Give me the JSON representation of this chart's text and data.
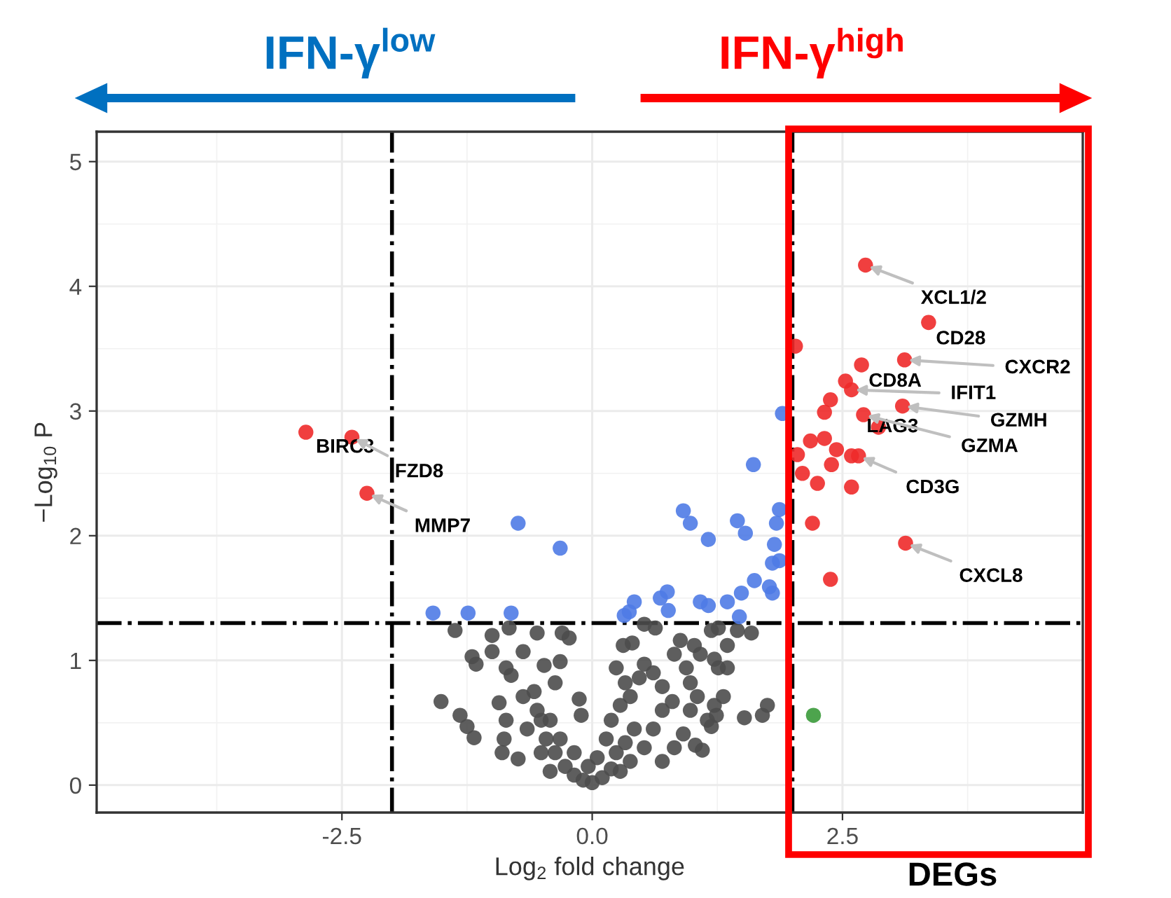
{
  "chart_data": {
    "type": "scatter",
    "xlabel": "Log$_{2}$ fold change",
    "ylabel": "−Log$_{10}$ P",
    "xlim": [
      -4.95,
      4.9
    ],
    "ylim": [
      -0.22,
      5.24
    ],
    "xticks": [
      {
        "value": -2.5,
        "label": "-2.5"
      },
      {
        "value": 0,
        "label": "0.0"
      },
      {
        "value": 2.5,
        "label": "2.5"
      }
    ],
    "yticks": [
      0,
      1,
      2,
      3,
      4,
      5
    ],
    "grid": true,
    "marker": "circle",
    "ref_lines": [
      {
        "axis": "x",
        "value": -2,
        "color": "#000000",
        "line_style": "dashdot"
      },
      {
        "axis": "x",
        "value": 2,
        "color": "#000000",
        "line_style": "dashdot"
      },
      {
        "axis": "y",
        "value": 1.3,
        "color": "#000000",
        "line_style": "dashdot"
      }
    ],
    "series": [
      {
        "color": "#4d4d4d",
        "x": [
          -1.37,
          -1.0,
          -0.83,
          -0.55,
          -0.3,
          -0.23,
          -1.2,
          -1.16,
          -1.0,
          -0.69,
          -0.86,
          -0.81,
          -0.48,
          -0.32,
          -1.51,
          -1.32,
          -1.25,
          -1.18,
          -0.93,
          -0.86,
          -0.88,
          -0.9,
          -0.74,
          -0.69,
          -0.58,
          -0.37,
          -0.13,
          -0.11,
          -0.51,
          -0.46,
          -0.37,
          -0.27,
          -0.18,
          -0.09,
          0.0,
          0.1,
          0.19,
          0.24,
          0.14,
          0.19,
          0.28,
          0.38,
          0.33,
          0.47,
          0.52,
          0.31,
          0.4,
          0.24,
          0.61,
          0.7,
          0.7,
          0.61,
          0.52,
          0.38,
          0.28,
          0.8,
          0.82,
          0.94,
          0.88,
          0.52,
          0.63,
          1.02,
          1.08,
          0.98,
          1.05,
          0.98,
          0.91,
          0.82,
          0.7,
          1.03,
          1.1,
          1.19,
          1.26,
          1.45,
          1.59,
          1.35,
          1.22,
          1.26,
          1.35,
          1.31,
          1.22,
          1.24,
          1.15,
          1.19,
          1.52,
          1.7,
          1.75,
          -0.18,
          0.05,
          -0.04,
          0.42,
          0.33,
          -0.32,
          -0.42,
          -0.55,
          -0.65,
          -0.51,
          -0.42
        ],
        "values": [
          1.24,
          1.2,
          1.26,
          1.22,
          1.22,
          1.18,
          1.03,
          0.97,
          1.07,
          1.07,
          0.94,
          0.88,
          0.96,
          0.99,
          0.67,
          0.56,
          0.47,
          0.38,
          0.66,
          0.52,
          0.37,
          0.26,
          0.21,
          0.71,
          0.75,
          0.82,
          0.69,
          0.56,
          0.52,
          0.37,
          0.26,
          0.15,
          0.08,
          0.04,
          0.02,
          0.06,
          0.13,
          0.26,
          0.37,
          0.52,
          0.64,
          0.71,
          0.82,
          0.86,
          0.97,
          1.12,
          1.14,
          0.94,
          0.9,
          0.79,
          0.6,
          0.45,
          0.3,
          0.19,
          0.11,
          0.67,
          1.05,
          0.94,
          1.16,
          1.29,
          1.26,
          1.12,
          1.05,
          0.82,
          0.71,
          0.6,
          0.41,
          0.3,
          0.19,
          0.32,
          0.28,
          1.24,
          1.26,
          1.24,
          1.22,
          1.12,
          1.01,
          0.94,
          0.94,
          0.71,
          0.64,
          0.56,
          0.52,
          0.47,
          0.54,
          0.56,
          0.64,
          0.26,
          0.22,
          0.15,
          0.45,
          0.34,
          0.37,
          0.52,
          0.6,
          0.45,
          0.26,
          0.11
        ]
      },
      {
        "color": "#4f7be6",
        "x": [
          -1.59,
          -1.24,
          -0.81,
          -0.74,
          -0.32,
          1.61,
          1.9,
          0.91,
          0.98,
          1.16,
          1.45,
          1.53,
          1.87,
          1.84,
          1.82,
          1.87,
          1.8,
          1.62,
          1.77,
          1.8,
          1.49,
          1.35,
          1.08,
          1.16,
          0.75,
          0.68,
          0.76,
          0.42,
          0.37,
          0.32,
          1.47
        ],
        "values": [
          1.38,
          1.38,
          1.38,
          2.1,
          1.9,
          2.57,
          2.98,
          2.2,
          2.1,
          1.97,
          2.12,
          2.02,
          2.21,
          2.1,
          1.93,
          1.8,
          1.78,
          1.64,
          1.59,
          1.54,
          1.54,
          1.47,
          1.47,
          1.44,
          1.55,
          1.5,
          1.4,
          1.47,
          1.39,
          1.36,
          1.35
        ]
      },
      {
        "color": "#ee2a2a",
        "x": [
          -2.86,
          -2.4,
          -2.25,
          2.73,
          3.36,
          2.03,
          3.12,
          2.69,
          2.53,
          2.59,
          2.38,
          2.32,
          3.1,
          2.71,
          2.86,
          2.18,
          2.32,
          2.44,
          2.05,
          2.59,
          2.66,
          2.39,
          2.1,
          2.25,
          2.59,
          2.2,
          3.13,
          2.38
        ],
        "values": [
          2.83,
          2.79,
          2.34,
          4.17,
          3.71,
          3.52,
          3.41,
          3.37,
          3.24,
          3.17,
          3.09,
          2.99,
          3.04,
          2.97,
          2.87,
          2.76,
          2.78,
          2.69,
          2.65,
          2.64,
          2.64,
          2.57,
          2.5,
          2.42,
          2.39,
          2.1,
          1.94,
          1.65
        ]
      },
      {
        "color": "#3a9a3a",
        "x": [
          2.21
        ],
        "values": [
          0.56
        ]
      }
    ],
    "annotations": [
      {
        "text": "XCL1/2",
        "x": 2.73,
        "y": 4.17
      },
      {
        "text": "CD28",
        "x": 3.36,
        "y": 3.71
      },
      {
        "text": "CXCR2",
        "x": 3.12,
        "y": 3.41
      },
      {
        "text": "CD8A",
        "x": 2.69,
        "y": 3.37
      },
      {
        "text": "IFIT1",
        "x": 2.59,
        "y": 3.17
      },
      {
        "text": "GZMH",
        "x": 3.1,
        "y": 3.04
      },
      {
        "text": "LAG3",
        "x": 2.86,
        "y": 2.87
      },
      {
        "text": "GZMA",
        "x": 2.71,
        "y": 2.97
      },
      {
        "text": "CD3G",
        "x": 2.66,
        "y": 2.64
      },
      {
        "text": "CXCL8",
        "x": 3.13,
        "y": 1.94
      },
      {
        "text": "BIRC3",
        "x": -2.86,
        "y": 2.83
      },
      {
        "text": "FZD8",
        "x": -2.4,
        "y": 2.79
      },
      {
        "text": "MMP7",
        "x": -2.25,
        "y": 2.34
      },
      "IFN-γ$^{low}$",
      "IFN-γ$^{high}$",
      "DEGs"
    ]
  }
}
